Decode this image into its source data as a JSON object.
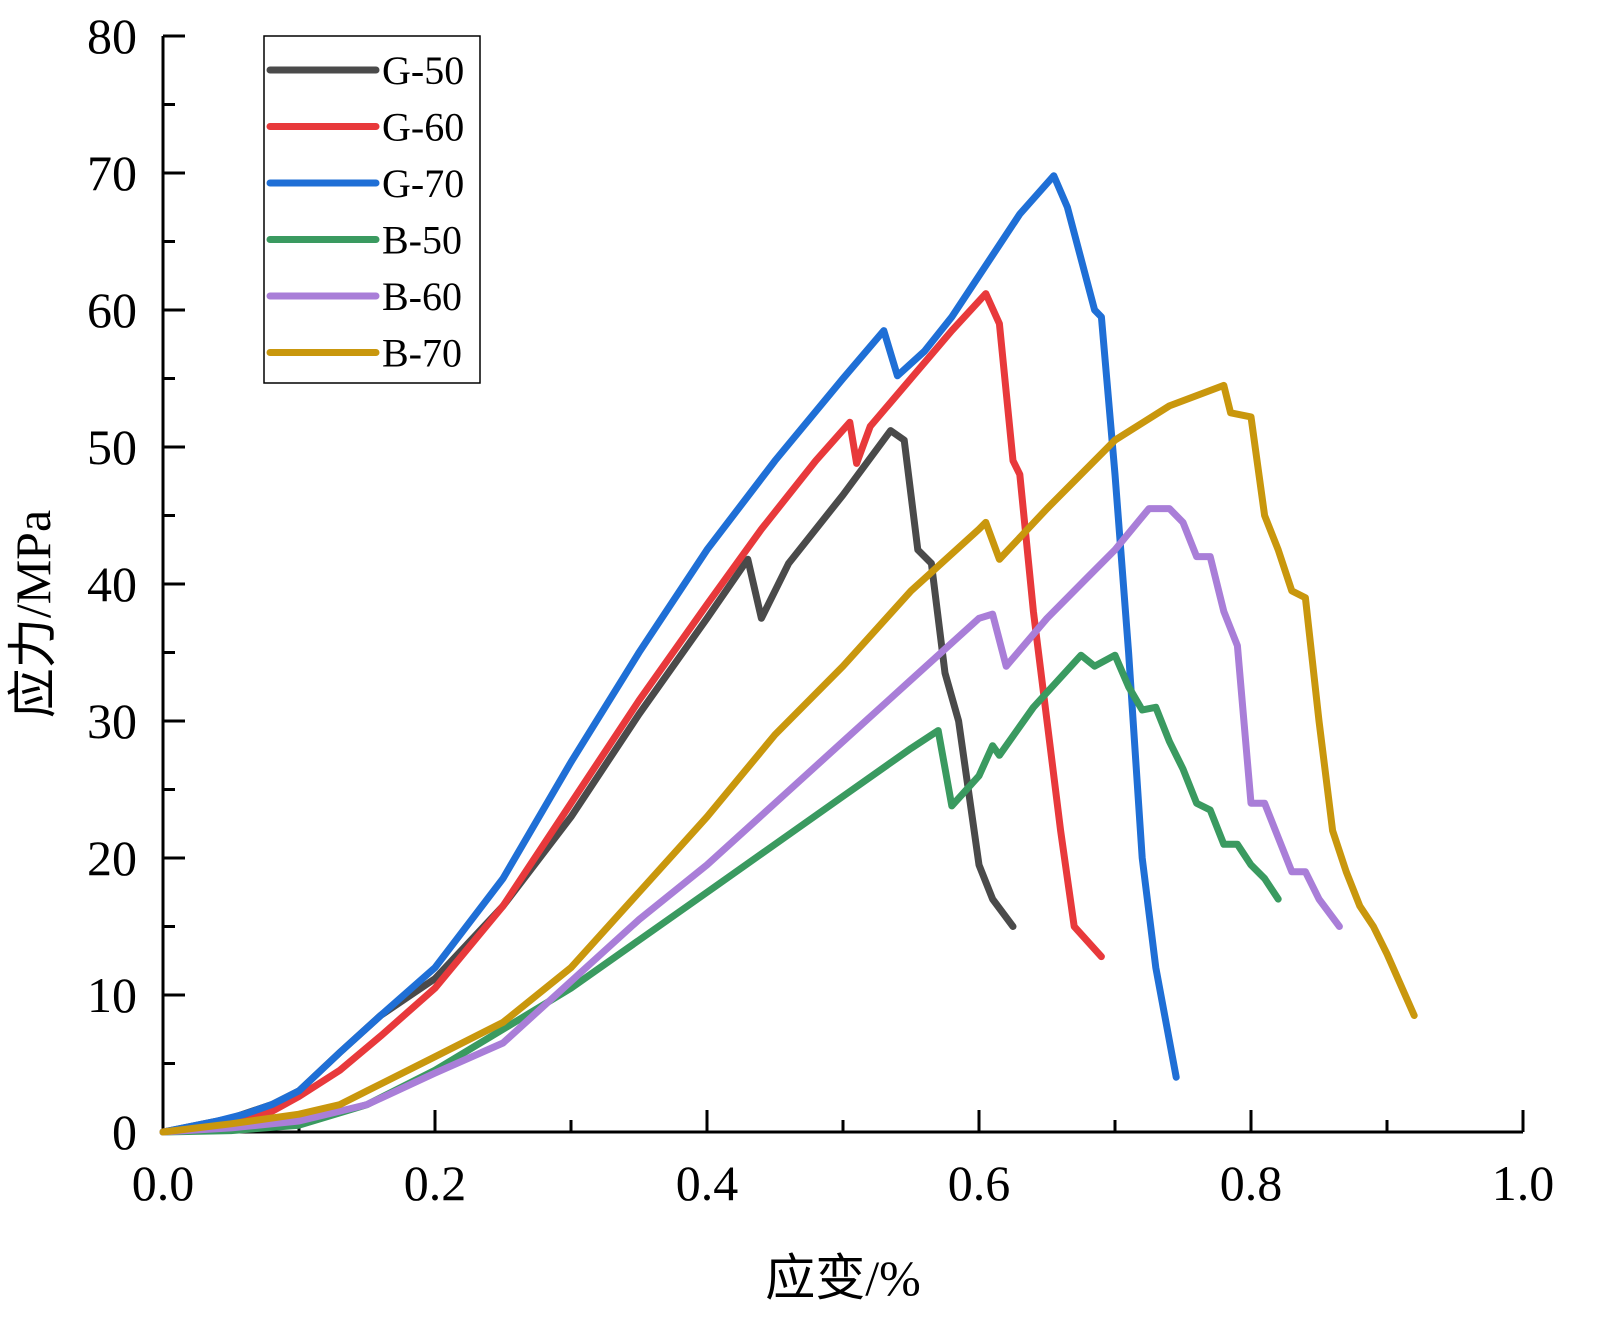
{
  "chart_data": {
    "type": "line",
    "title": "",
    "xlabel": "应变/%",
    "ylabel": "应力/MPa",
    "xlim": [
      0,
      1.0
    ],
    "ylim": [
      0,
      80
    ],
    "xticks": [
      "0.0",
      "0.2",
      "0.4",
      "0.6",
      "0.8",
      "1.0"
    ],
    "yticks": [
      "0",
      "10",
      "20",
      "30",
      "40",
      "50",
      "60",
      "70",
      "80"
    ],
    "grid": false,
    "legend_position": "top-left",
    "series": [
      {
        "name": "G-50",
        "color": "#4a4a4a",
        "points": [
          [
            0,
            0
          ],
          [
            0.05,
            1.0
          ],
          [
            0.08,
            2.0
          ],
          [
            0.1,
            3.0
          ],
          [
            0.13,
            5.8
          ],
          [
            0.16,
            8.5
          ],
          [
            0.2,
            11.2
          ],
          [
            0.25,
            16.5
          ],
          [
            0.3,
            23.0
          ],
          [
            0.35,
            30.5
          ],
          [
            0.4,
            37.5
          ],
          [
            0.43,
            41.8
          ],
          [
            0.44,
            37.5
          ],
          [
            0.46,
            41.5
          ],
          [
            0.5,
            46.5
          ],
          [
            0.535,
            51.2
          ],
          [
            0.545,
            50.5
          ],
          [
            0.555,
            42.5
          ],
          [
            0.565,
            41.5
          ],
          [
            0.575,
            33.5
          ],
          [
            0.585,
            30.0
          ],
          [
            0.6,
            19.5
          ],
          [
            0.61,
            17.0
          ],
          [
            0.625,
            15.0
          ]
        ]
      },
      {
        "name": "G-60",
        "color": "#e8393b",
        "points": [
          [
            0,
            0
          ],
          [
            0.05,
            0.8
          ],
          [
            0.08,
            1.5
          ],
          [
            0.1,
            2.6
          ],
          [
            0.13,
            4.5
          ],
          [
            0.16,
            7.0
          ],
          [
            0.2,
            10.5
          ],
          [
            0.25,
            16.5
          ],
          [
            0.3,
            24.0
          ],
          [
            0.35,
            31.5
          ],
          [
            0.4,
            38.5
          ],
          [
            0.44,
            44.0
          ],
          [
            0.48,
            49.0
          ],
          [
            0.505,
            51.8
          ],
          [
            0.51,
            48.8
          ],
          [
            0.52,
            51.5
          ],
          [
            0.55,
            55.0
          ],
          [
            0.58,
            58.5
          ],
          [
            0.605,
            61.2
          ],
          [
            0.615,
            59.0
          ],
          [
            0.625,
            49.0
          ],
          [
            0.63,
            48.0
          ],
          [
            0.64,
            38.0
          ],
          [
            0.65,
            30.0
          ],
          [
            0.66,
            22.0
          ],
          [
            0.67,
            15.0
          ],
          [
            0.69,
            12.8
          ]
        ]
      },
      {
        "name": "G-70",
        "color": "#1f6fd6",
        "points": [
          [
            0,
            0
          ],
          [
            0.04,
            0.8
          ],
          [
            0.06,
            1.3
          ],
          [
            0.08,
            2.0
          ],
          [
            0.1,
            3.0
          ],
          [
            0.13,
            5.8
          ],
          [
            0.16,
            8.5
          ],
          [
            0.2,
            12.0
          ],
          [
            0.25,
            18.5
          ],
          [
            0.3,
            27.0
          ],
          [
            0.35,
            35.0
          ],
          [
            0.4,
            42.5
          ],
          [
            0.45,
            49.0
          ],
          [
            0.5,
            55.0
          ],
          [
            0.53,
            58.5
          ],
          [
            0.54,
            55.2
          ],
          [
            0.56,
            57.0
          ],
          [
            0.58,
            59.5
          ],
          [
            0.6,
            62.5
          ],
          [
            0.63,
            67.0
          ],
          [
            0.655,
            69.8
          ],
          [
            0.665,
            67.5
          ],
          [
            0.685,
            60.0
          ],
          [
            0.69,
            59.5
          ],
          [
            0.7,
            48.0
          ],
          [
            0.71,
            35.0
          ],
          [
            0.72,
            20.0
          ],
          [
            0.73,
            12.0
          ],
          [
            0.745,
            4.0
          ]
        ]
      },
      {
        "name": "B-50",
        "color": "#3a9a60",
        "points": [
          [
            0,
            0
          ],
          [
            0.05,
            0.1
          ],
          [
            0.1,
            0.5
          ],
          [
            0.15,
            2.0
          ],
          [
            0.2,
            4.5
          ],
          [
            0.25,
            7.5
          ],
          [
            0.3,
            10.5
          ],
          [
            0.35,
            14.0
          ],
          [
            0.4,
            17.5
          ],
          [
            0.45,
            21.0
          ],
          [
            0.5,
            24.5
          ],
          [
            0.55,
            28.0
          ],
          [
            0.57,
            29.3
          ],
          [
            0.58,
            23.8
          ],
          [
            0.6,
            26.0
          ],
          [
            0.61,
            28.2
          ],
          [
            0.615,
            27.5
          ],
          [
            0.64,
            31.0
          ],
          [
            0.675,
            34.8
          ],
          [
            0.685,
            34.0
          ],
          [
            0.7,
            34.8
          ],
          [
            0.71,
            32.5
          ],
          [
            0.72,
            30.8
          ],
          [
            0.73,
            31.0
          ],
          [
            0.74,
            28.5
          ],
          [
            0.75,
            26.5
          ],
          [
            0.76,
            24.0
          ],
          [
            0.77,
            23.5
          ],
          [
            0.78,
            21.0
          ],
          [
            0.79,
            21.0
          ],
          [
            0.8,
            19.5
          ],
          [
            0.81,
            18.5
          ],
          [
            0.82,
            17.0
          ]
        ]
      },
      {
        "name": "B-60",
        "color": "#a97ed8",
        "points": [
          [
            0,
            0
          ],
          [
            0.05,
            0.3
          ],
          [
            0.1,
            0.8
          ],
          [
            0.15,
            2.0
          ],
          [
            0.2,
            4.3
          ],
          [
            0.25,
            6.5
          ],
          [
            0.3,
            11.0
          ],
          [
            0.35,
            15.5
          ],
          [
            0.4,
            19.5
          ],
          [
            0.45,
            24.0
          ],
          [
            0.5,
            28.5
          ],
          [
            0.55,
            33.0
          ],
          [
            0.6,
            37.5
          ],
          [
            0.61,
            37.8
          ],
          [
            0.62,
            34.0
          ],
          [
            0.65,
            37.5
          ],
          [
            0.68,
            40.5
          ],
          [
            0.7,
            42.5
          ],
          [
            0.725,
            45.5
          ],
          [
            0.74,
            45.5
          ],
          [
            0.75,
            44.5
          ],
          [
            0.76,
            42.0
          ],
          [
            0.77,
            42.0
          ],
          [
            0.78,
            38.0
          ],
          [
            0.79,
            35.5
          ],
          [
            0.8,
            24.0
          ],
          [
            0.81,
            24.0
          ],
          [
            0.82,
            21.5
          ],
          [
            0.83,
            19.0
          ],
          [
            0.84,
            19.0
          ],
          [
            0.85,
            17.0
          ],
          [
            0.865,
            15.0
          ]
        ]
      },
      {
        "name": "B-70",
        "color": "#c9970d",
        "points": [
          [
            0,
            0
          ],
          [
            0.05,
            0.6
          ],
          [
            0.1,
            1.3
          ],
          [
            0.13,
            2.0
          ],
          [
            0.15,
            3.0
          ],
          [
            0.2,
            5.5
          ],
          [
            0.25,
            8.0
          ],
          [
            0.3,
            12.0
          ],
          [
            0.35,
            17.5
          ],
          [
            0.4,
            23.0
          ],
          [
            0.45,
            29.0
          ],
          [
            0.5,
            34.0
          ],
          [
            0.55,
            39.5
          ],
          [
            0.6,
            44.0
          ],
          [
            0.605,
            44.5
          ],
          [
            0.615,
            41.8
          ],
          [
            0.65,
            45.5
          ],
          [
            0.7,
            50.5
          ],
          [
            0.74,
            53.0
          ],
          [
            0.78,
            54.5
          ],
          [
            0.785,
            52.5
          ],
          [
            0.8,
            52.2
          ],
          [
            0.81,
            45.0
          ],
          [
            0.82,
            42.5
          ],
          [
            0.83,
            39.5
          ],
          [
            0.84,
            39.0
          ],
          [
            0.85,
            30.0
          ],
          [
            0.86,
            22.0
          ],
          [
            0.87,
            19.0
          ],
          [
            0.88,
            16.5
          ],
          [
            0.89,
            15.0
          ],
          [
            0.9,
            13.0
          ],
          [
            0.92,
            8.5
          ]
        ]
      }
    ]
  }
}
